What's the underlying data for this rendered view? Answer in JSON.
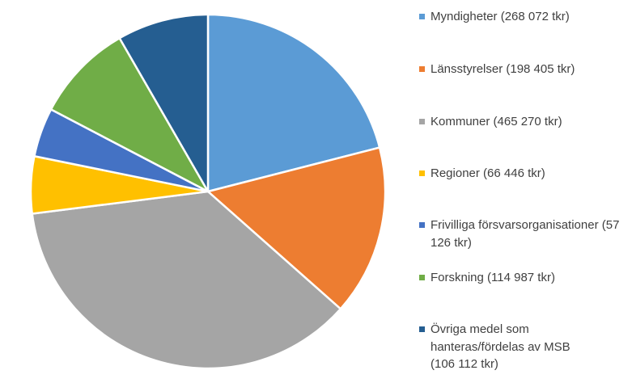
{
  "chart_data": {
    "type": "pie",
    "title": "",
    "legend_position": "right",
    "start_angle_deg": 0,
    "direction": "clockwise",
    "slices": [
      {
        "label": "Myndigheter (268 072 tkr)",
        "value": 268072,
        "color": "#5B9BD5"
      },
      {
        "label": "Länsstyrelser (198 405 tkr)",
        "value": 198405,
        "color": "#ED7D31"
      },
      {
        "label": "Kommuner (465 270 tkr)",
        "value": 465270,
        "color": "#A5A5A5"
      },
      {
        "label": "Regioner (66 446 tkr)",
        "value": 66446,
        "color": "#FFC000"
      },
      {
        "label": "Frivilliga försvarsorganisationer (57 126 tkr)",
        "value": 57126,
        "color": "#4472C4"
      },
      {
        "label": "Forskning (114 987 tkr)",
        "value": 114987,
        "color": "#70AD47"
      },
      {
        "label": "Övriga medel som hanteras/fördelas av MSB (106 112 tkr)",
        "value": 106112,
        "color": "#255E91"
      }
    ]
  }
}
